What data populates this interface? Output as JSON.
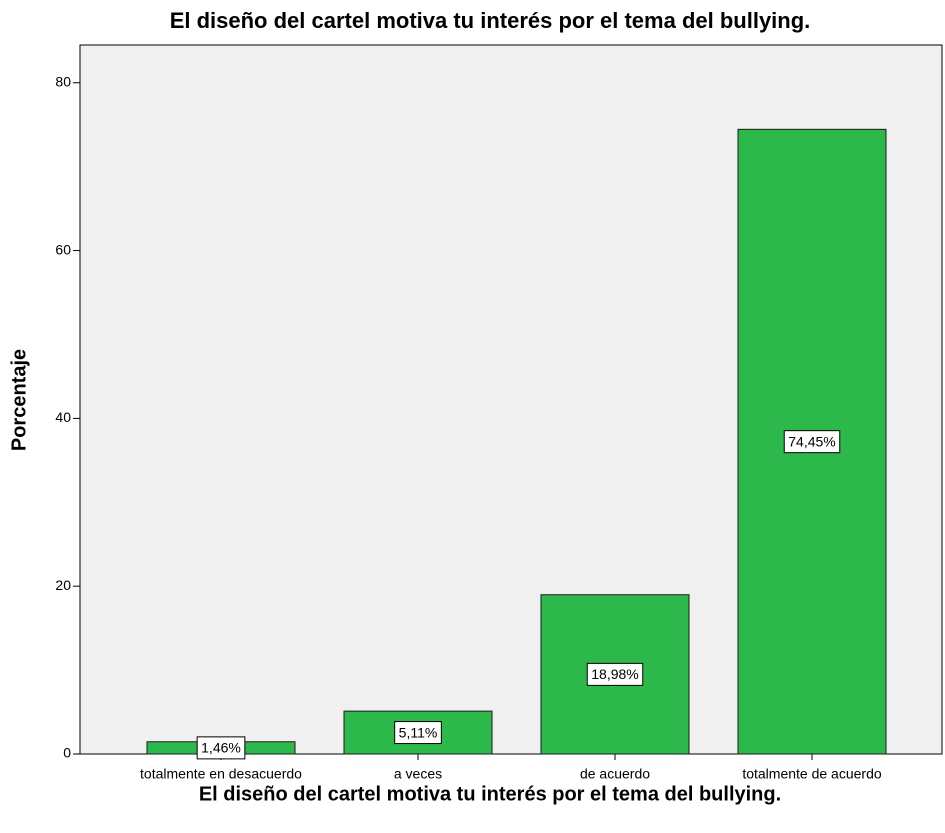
{
  "chart_data": {
    "type": "bar",
    "title": "El diseño del cartel motiva tu interés por el tema del bullying.",
    "x_label": "El diseño del cartel motiva tu interés por el tema del bullying.",
    "y_label": "Porcentaje",
    "categories": [
      "totalmente en desacuerdo",
      "a veces",
      "de acuerdo",
      "totalmente de acuerdo"
    ],
    "values": [
      1.46,
      5.11,
      18.98,
      74.45
    ],
    "value_labels": [
      "1,46%",
      "5,11%",
      "18,98%",
      "74,45%"
    ],
    "color": "#2db84b",
    "ylim": [
      0,
      84.5
    ],
    "yticks": [
      0,
      20,
      40,
      60,
      80
    ]
  }
}
